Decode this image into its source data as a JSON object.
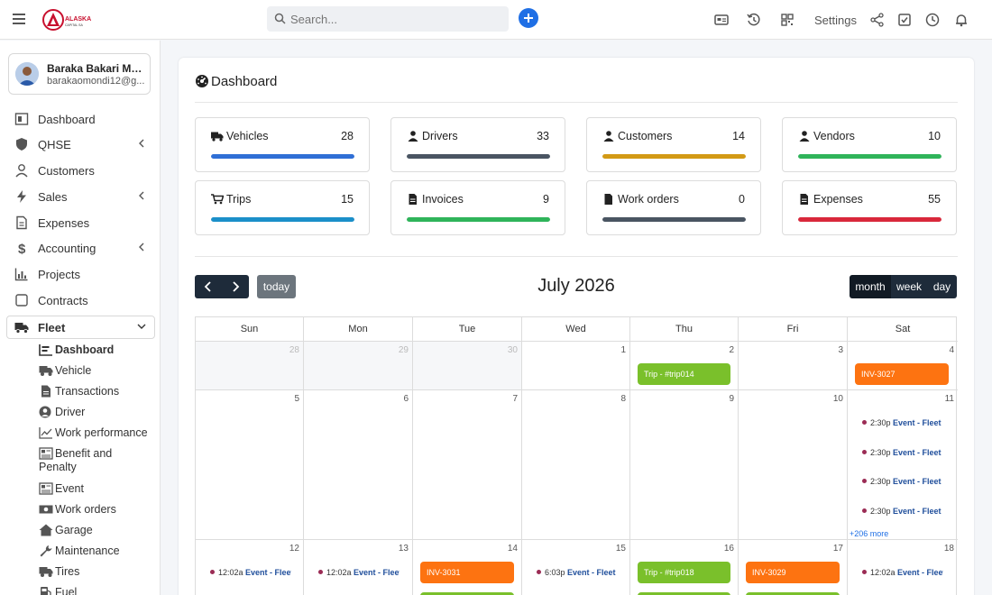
{
  "header": {
    "logo_text": "ALASKA",
    "logo_sub": "CAPITAL SA",
    "search_placeholder": "Search...",
    "settings_label": "Settings"
  },
  "user": {
    "name": "Baraka Bakari Mkan...",
    "email": "barakaomondi12@g..."
  },
  "sidebar": {
    "items": [
      {
        "label": "Dashboard",
        "icon": "dashboard-icon"
      },
      {
        "label": "QHSE",
        "icon": "shield-icon"
      },
      {
        "label": "Customers",
        "icon": "user-icon"
      },
      {
        "label": "Sales",
        "icon": "bolt-icon"
      },
      {
        "label": "Expenses",
        "icon": "file-icon"
      },
      {
        "label": "Accounting",
        "icon": "dollar-icon"
      },
      {
        "label": "Projects",
        "icon": "chart-icon"
      },
      {
        "label": "Contracts",
        "icon": "contract-icon"
      },
      {
        "label": "Fleet",
        "icon": "truck-icon"
      }
    ],
    "fleet_sub": [
      {
        "label": "Dashboard",
        "icon": "dashboard-icon"
      },
      {
        "label": "Vehicle",
        "icon": "truck-icon"
      },
      {
        "label": "Transactions",
        "icon": "file-icon"
      },
      {
        "label": "Driver",
        "icon": "user-circle-icon"
      },
      {
        "label": "Work performance",
        "icon": "line-chart-icon"
      },
      {
        "label": "Benefit and",
        "label2": "Penalty",
        "icon": "newspaper-icon"
      },
      {
        "label": "Event",
        "icon": "newspaper-icon"
      },
      {
        "label": "Work orders",
        "icon": "money-icon"
      },
      {
        "label": "Garage",
        "icon": "home-icon"
      },
      {
        "label": "Maintenance",
        "icon": "wrench-icon"
      },
      {
        "label": "Tires",
        "icon": "truck-icon"
      },
      {
        "label": "Fuel",
        "icon": "fuel-icon"
      }
    ]
  },
  "dashboard": {
    "title": "Dashboard",
    "stats": [
      {
        "label": "Vehicles",
        "value": "28",
        "color": "#2f6fd6",
        "icon": "truck-icon"
      },
      {
        "label": "Drivers",
        "value": "33",
        "color": "#4a5562",
        "icon": "user-tie-icon"
      },
      {
        "label": "Customers",
        "value": "14",
        "color": "#d39a15",
        "icon": "user-icon"
      },
      {
        "label": "Vendors",
        "value": "10",
        "color": "#2fb45a",
        "icon": "user-tie-icon"
      },
      {
        "label": "Trips",
        "value": "15",
        "color": "#1b8fc9",
        "icon": "cart-icon"
      },
      {
        "label": "Invoices",
        "value": "9",
        "color": "#2fb45a",
        "icon": "file-invoice-icon"
      },
      {
        "label": "Work orders",
        "value": "0",
        "color": "#4a5562",
        "icon": "file-icon"
      },
      {
        "label": "Expenses",
        "value": "55",
        "color": "#d9283b",
        "icon": "file-invoice-icon"
      }
    ]
  },
  "calendar": {
    "title": "July 2026",
    "today_label": "today",
    "views": [
      "month",
      "week",
      "day"
    ],
    "days": [
      "Sun",
      "Mon",
      "Tue",
      "Wed",
      "Thu",
      "Fri",
      "Sat"
    ],
    "weeks": [
      [
        "28",
        "29",
        "30",
        "1",
        "2",
        "3",
        "4"
      ],
      [
        "5",
        "6",
        "7",
        "8",
        "9",
        "10",
        "11"
      ],
      [
        "12",
        "13",
        "14",
        "15",
        "16",
        "17",
        "18"
      ]
    ],
    "events": {
      "trip014": "Trip - #trip014",
      "inv3027": "INV-3027",
      "fleet_time": "2:30p",
      "fleet_title": "Event - Fleet",
      "more": "+206 more",
      "ev12_time": "12:02a",
      "ev12_title": "Event - Fleet",
      "inv3031": "INV-3031",
      "ev15_time": "6:03p",
      "trip018": "Trip - #trip018",
      "inv3029": "INV-3029"
    }
  }
}
